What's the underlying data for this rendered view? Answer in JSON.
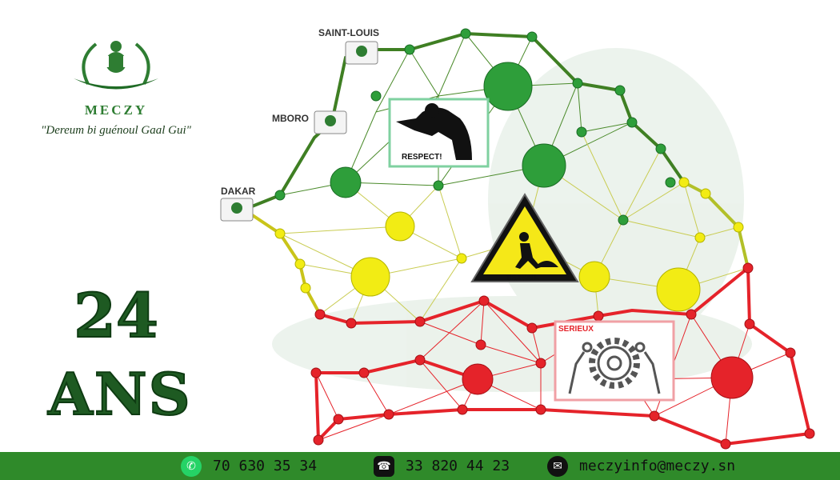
{
  "brand": {
    "name": "MECZY",
    "slogan": "\"Dereum bi guénoul Gaal Gui\""
  },
  "anniversary": {
    "number": "24",
    "unit": "ANS"
  },
  "map": {
    "cities": [
      "SAINT-LOUIS",
      "MBORO",
      "DAKAR"
    ],
    "panels": {
      "respect": "RESPECT!",
      "travail": "TRAVAIL",
      "serieux": "SERIEUX"
    },
    "colors": {
      "green": "#2e9e3a",
      "yellow": "#f2ec14",
      "red": "#e5232a"
    }
  },
  "footer": {
    "whatsapp": "70 630 35 34",
    "phone": "33 820 44 23",
    "email": "meczyinfo@meczy.sn"
  }
}
